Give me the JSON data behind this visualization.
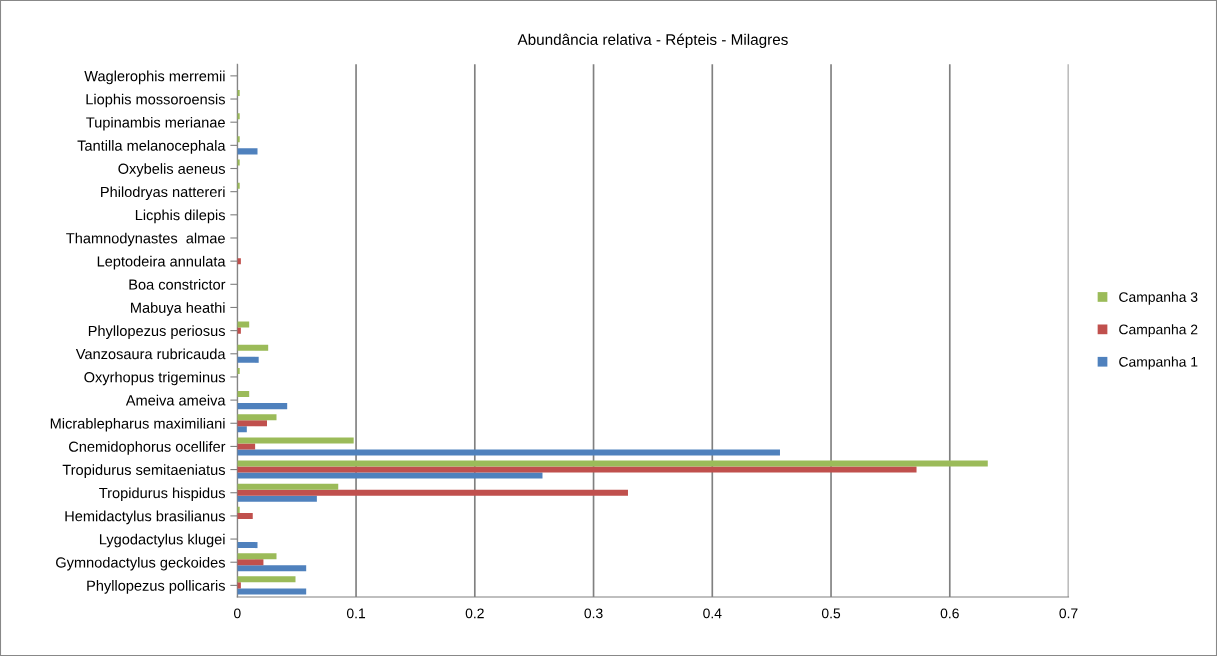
{
  "chart_data": {
    "type": "bar",
    "orientation": "horizontal",
    "title": "Abundância relativa - Répteis - Milagres",
    "categories": [
      "Waglerophis merremii",
      "Liophis mossoroensis",
      "Tupinambis merianae",
      "Tantilla melanocephala",
      "Oxybelis aeneus",
      "Philodryas nattereri",
      "Licphis dilepis",
      "Thamnodynastes  almae",
      "Leptodeira annulata",
      "Boa constrictor",
      "Mabuya heathi",
      "Phyllopezus periosus",
      "Vanzosaura rubricauda",
      "Oxyrhopus trigeminus",
      "Ameiva ameiva",
      "Micrablepharus maximiliani",
      "Cnemidophorus ocellifer",
      "Tropidurus semitaeniatus",
      "Tropidurus hispidus",
      "Hemidactylus brasilianus",
      "Lygodactylus klugei",
      "Gymnodactylus geckoides",
      "Phyllopezus pollicaris"
    ],
    "series": [
      {
        "name": "Campanha 1",
        "color": "#4f81bd",
        "values": [
          null,
          null,
          null,
          0.017,
          null,
          null,
          null,
          null,
          null,
          null,
          null,
          null,
          0.018,
          null,
          0.042,
          0.008,
          0.457,
          0.257,
          0.067,
          null,
          0.017,
          0.058,
          0.058
        ]
      },
      {
        "name": "Campanha 2",
        "color": "#c0504d",
        "values": [
          null,
          null,
          null,
          null,
          null,
          null,
          null,
          null,
          0.003,
          null,
          null,
          0.003,
          null,
          null,
          null,
          0.025,
          0.015,
          0.572,
          0.329,
          0.013,
          null,
          0.022,
          0.003
        ]
      },
      {
        "name": "Campanha 3",
        "color": "#9bbb59",
        "values": [
          null,
          0.002,
          0.002,
          0.002,
          0.002,
          0.002,
          null,
          null,
          null,
          null,
          null,
          0.01,
          0.026,
          0.002,
          0.01,
          0.033,
          0.098,
          0.632,
          0.085,
          0.002,
          null,
          0.033,
          0.049
        ]
      }
    ],
    "xlim": [
      0,
      0.7
    ],
    "xticks": [
      0,
      0.1,
      0.2,
      0.3,
      0.4,
      0.5,
      0.6,
      0.7
    ],
    "grid": "x",
    "legend": "right"
  }
}
